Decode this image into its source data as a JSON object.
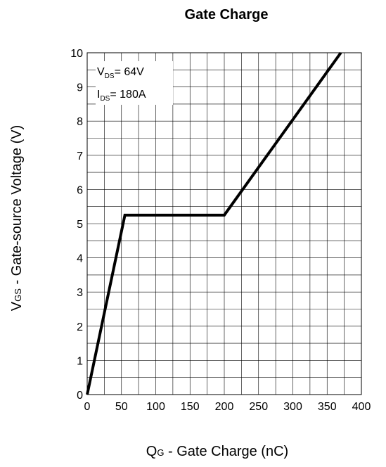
{
  "chart_data": {
    "type": "line",
    "title": "Gate Charge",
    "xlabel": {
      "symbol": "Q",
      "subscript": "G",
      "rest": " - Gate Charge (nC)"
    },
    "ylabel": {
      "symbol": "V",
      "subscript": "GS",
      "rest": " - Gate-source Voltage (V)"
    },
    "xlim": [
      0,
      400
    ],
    "ylim": [
      0,
      10
    ],
    "x_ticks": [
      0,
      50,
      100,
      150,
      200,
      250,
      300,
      350,
      400
    ],
    "y_ticks": [
      0,
      1,
      2,
      3,
      4,
      5,
      6,
      7,
      8,
      9,
      10
    ],
    "grid": true,
    "minor_grid": true,
    "series": [
      {
        "color": "#000000",
        "x": [
          0,
          55,
          200,
          370
        ],
        "y": [
          0,
          5.25,
          5.25,
          10
        ]
      }
    ],
    "annotations": [
      {
        "symbol": "V",
        "subscript": "DS",
        "value": "= 64V"
      },
      {
        "symbol": "I",
        "subscript": "DS",
        "value": "= 180A"
      }
    ]
  }
}
